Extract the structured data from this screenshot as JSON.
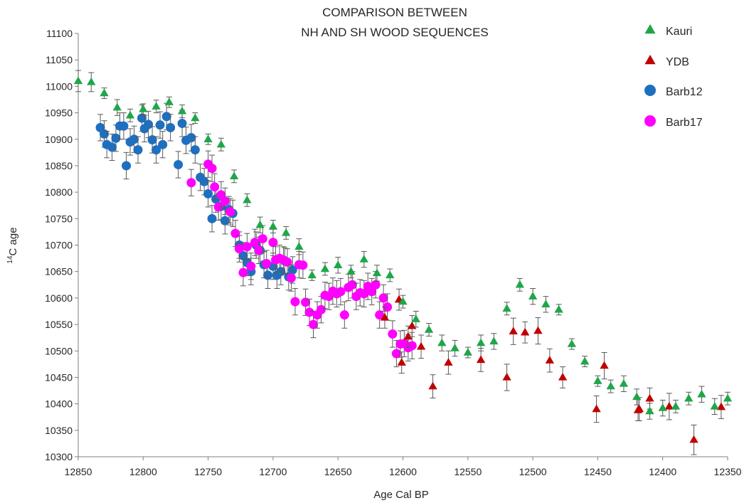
{
  "chart_data": {
    "type": "scatter",
    "title_lines": [
      "COMPARISON BETWEEN",
      "NH AND SH WOOD SEQUENCES"
    ],
    "xlabel": "Age Cal BP",
    "ylabel_sup": "14",
    "ylabel_rest": "C age",
    "xlim": [
      12850,
      12350
    ],
    "ylim": [
      10300,
      11100
    ],
    "x_ticks": [
      12850,
      12800,
      12750,
      12700,
      12650,
      12600,
      12550,
      12500,
      12450,
      12400,
      12350
    ],
    "y_ticks": [
      10300,
      10350,
      10400,
      10450,
      10500,
      10550,
      10600,
      10650,
      10700,
      10750,
      10800,
      10850,
      10900,
      10950,
      11000,
      11050,
      11100
    ],
    "x_reversed": true,
    "legend_position": "top-right",
    "series": [
      {
        "name": "Kauri",
        "marker": "triangle",
        "color": "#1fa64a",
        "points": [
          [
            12850,
            11010,
            20
          ],
          [
            12840,
            11008,
            18
          ],
          [
            12830,
            10987,
            10
          ],
          [
            12820,
            10960,
            15
          ],
          [
            12810,
            10945,
            12
          ],
          [
            12800,
            10957,
            10
          ],
          [
            12790,
            10962,
            12
          ],
          [
            12780,
            10970,
            10
          ],
          [
            12770,
            10953,
            12
          ],
          [
            12760,
            10940,
            10
          ],
          [
            12750,
            10900,
            10
          ],
          [
            12740,
            10890,
            12
          ],
          [
            12730,
            10830,
            12
          ],
          [
            12720,
            10785,
            12
          ],
          [
            12710,
            10738,
            15
          ],
          [
            12700,
            10735,
            12
          ],
          [
            12690,
            10723,
            12
          ],
          [
            12680,
            10697,
            15
          ],
          [
            12670,
            10643,
            10
          ],
          [
            12660,
            10655,
            12
          ],
          [
            12650,
            10662,
            15
          ],
          [
            12640,
            10650,
            12
          ],
          [
            12630,
            10673,
            15
          ],
          [
            12620,
            10647,
            15
          ],
          [
            12610,
            10643,
            12
          ],
          [
            12600,
            10593,
            12
          ],
          [
            12590,
            10560,
            15
          ],
          [
            12580,
            10540,
            12
          ],
          [
            12570,
            10515,
            15
          ],
          [
            12560,
            10505,
            15
          ],
          [
            12550,
            10497,
            10
          ],
          [
            12540,
            10515,
            15
          ],
          [
            12530,
            10518,
            15
          ],
          [
            12520,
            10580,
            12
          ],
          [
            12510,
            10625,
            12
          ],
          [
            12500,
            10603,
            15
          ],
          [
            12490,
            10588,
            15
          ],
          [
            12480,
            10578,
            10
          ],
          [
            12470,
            10513,
            10
          ],
          [
            12460,
            10480,
            10
          ],
          [
            12450,
            10443,
            10
          ],
          [
            12440,
            10433,
            12
          ],
          [
            12430,
            10438,
            15
          ],
          [
            12420,
            10413,
            15
          ],
          [
            12410,
            10386,
            15
          ],
          [
            12400,
            10392,
            15
          ],
          [
            12390,
            10395,
            12
          ],
          [
            12380,
            10410,
            12
          ],
          [
            12370,
            10418,
            15
          ],
          [
            12360,
            10395,
            15
          ],
          [
            12350,
            10410,
            12
          ]
        ]
      },
      {
        "name": "YDB",
        "marker": "triangle",
        "color": "#c00000",
        "points": [
          [
            12614,
            10563,
            20
          ],
          [
            12603,
            10597,
            20
          ],
          [
            12601,
            10478,
            20
          ],
          [
            12596,
            10527,
            20
          ],
          [
            12593,
            10547,
            20
          ],
          [
            12586,
            10508,
            22
          ],
          [
            12577,
            10433,
            22
          ],
          [
            12565,
            10478,
            22
          ],
          [
            12540,
            10483,
            22
          ],
          [
            12520,
            10450,
            25
          ],
          [
            12515,
            10537,
            25
          ],
          [
            12506,
            10535,
            20
          ],
          [
            12496,
            10538,
            25
          ],
          [
            12487,
            10482,
            22
          ],
          [
            12477,
            10450,
            20
          ],
          [
            12451,
            10390,
            25
          ],
          [
            12445,
            10472,
            25
          ],
          [
            12418,
            10390,
            22
          ],
          [
            12419,
            10388,
            20
          ],
          [
            12410,
            10410,
            20
          ],
          [
            12395,
            10395,
            25
          ],
          [
            12376,
            10332,
            28
          ],
          [
            12355,
            10394,
            22
          ]
        ]
      },
      {
        "name": "Barb12",
        "marker": "circle",
        "color": "#1f6fbf",
        "points": [
          [
            12833,
            10922,
            25
          ],
          [
            12830,
            10910,
            25
          ],
          [
            12828,
            10890,
            25
          ],
          [
            12824,
            10885,
            25
          ],
          [
            12821,
            10902,
            25
          ],
          [
            12818,
            10925,
            25
          ],
          [
            12815,
            10925,
            25
          ],
          [
            12813,
            10850,
            25
          ],
          [
            12810,
            10895,
            25
          ],
          [
            12807,
            10900,
            25
          ],
          [
            12804,
            10880,
            25
          ],
          [
            12801,
            10940,
            25
          ],
          [
            12799,
            10920,
            25
          ],
          [
            12796,
            10928,
            25
          ],
          [
            12793,
            10899,
            25
          ],
          [
            12790,
            10880,
            25
          ],
          [
            12787,
            10927,
            25
          ],
          [
            12785,
            10890,
            25
          ],
          [
            12782,
            10943,
            25
          ],
          [
            12779,
            10922,
            25
          ],
          [
            12773,
            10852,
            25
          ],
          [
            12770,
            10930,
            25
          ],
          [
            12767,
            10898,
            25
          ],
          [
            12763,
            10903,
            25
          ],
          [
            12760,
            10880,
            25
          ],
          [
            12756,
            10828,
            25
          ],
          [
            12753,
            10820,
            25
          ],
          [
            12750,
            10797,
            25
          ],
          [
            12747,
            10750,
            25
          ],
          [
            12744,
            10787,
            25
          ],
          [
            12740,
            10773,
            25
          ],
          [
            12737,
            10746,
            25
          ],
          [
            12734,
            10767,
            25
          ],
          [
            12731,
            10760,
            25
          ],
          [
            12726,
            10700,
            25
          ],
          [
            12723,
            10680,
            25
          ],
          [
            12720,
            10667,
            25
          ],
          [
            12717,
            10650,
            25
          ],
          [
            12713,
            10700,
            25
          ],
          [
            12710,
            10690,
            25
          ],
          [
            12707,
            10663,
            25
          ],
          [
            12704,
            10643,
            25
          ],
          [
            12700,
            10660,
            25
          ],
          [
            12697,
            10643,
            25
          ],
          [
            12694,
            10650,
            25
          ],
          [
            12691,
            10670,
            25
          ],
          [
            12688,
            10640,
            25
          ],
          [
            12685,
            10653,
            25
          ]
        ]
      },
      {
        "name": "Barb17",
        "marker": "circle",
        "color": "#ff00ff",
        "points": [
          [
            12763,
            10818,
            25
          ],
          [
            12750,
            10853,
            25
          ],
          [
            12747,
            10845,
            25
          ],
          [
            12745,
            10810,
            25
          ],
          [
            12742,
            10772,
            25
          ],
          [
            12740,
            10795,
            25
          ],
          [
            12737,
            10783,
            25
          ],
          [
            12733,
            10763,
            25
          ],
          [
            12729,
            10722,
            25
          ],
          [
            12726,
            10693,
            25
          ],
          [
            12723,
            10648,
            25
          ],
          [
            12720,
            10697,
            25
          ],
          [
            12717,
            10660,
            25
          ],
          [
            12714,
            10705,
            25
          ],
          [
            12711,
            10690,
            25
          ],
          [
            12708,
            10712,
            25
          ],
          [
            12705,
            10665,
            25
          ],
          [
            12700,
            10705,
            25
          ],
          [
            12698,
            10672,
            25
          ],
          [
            12695,
            10675,
            25
          ],
          [
            12692,
            10672,
            25
          ],
          [
            12689,
            10668,
            25
          ],
          [
            12686,
            10638,
            25
          ],
          [
            12683,
            10593,
            25
          ],
          [
            12680,
            10663,
            25
          ],
          [
            12677,
            10662,
            25
          ],
          [
            12675,
            10592,
            25
          ],
          [
            12672,
            10573,
            25
          ],
          [
            12669,
            10550,
            25
          ],
          [
            12666,
            10568,
            25
          ],
          [
            12663,
            10578,
            25
          ],
          [
            12660,
            10605,
            25
          ],
          [
            12657,
            10603,
            25
          ],
          [
            12654,
            10613,
            25
          ],
          [
            12651,
            10608,
            25
          ],
          [
            12648,
            10612,
            25
          ],
          [
            12645,
            10568,
            25
          ],
          [
            12642,
            10620,
            25
          ],
          [
            12639,
            10625,
            25
          ],
          [
            12636,
            10603,
            25
          ],
          [
            12633,
            10610,
            25
          ],
          [
            12630,
            10608,
            25
          ],
          [
            12627,
            10622,
            25
          ],
          [
            12624,
            10612,
            25
          ],
          [
            12621,
            10625,
            25
          ],
          [
            12618,
            10568,
            25
          ],
          [
            12615,
            10600,
            25
          ],
          [
            12612,
            10583,
            25
          ],
          [
            12608,
            10532,
            25
          ],
          [
            12605,
            10495,
            25
          ],
          [
            12602,
            10513,
            25
          ],
          [
            12599,
            10514,
            25
          ],
          [
            12596,
            10506,
            25
          ],
          [
            12593,
            10510,
            25
          ]
        ]
      }
    ]
  }
}
